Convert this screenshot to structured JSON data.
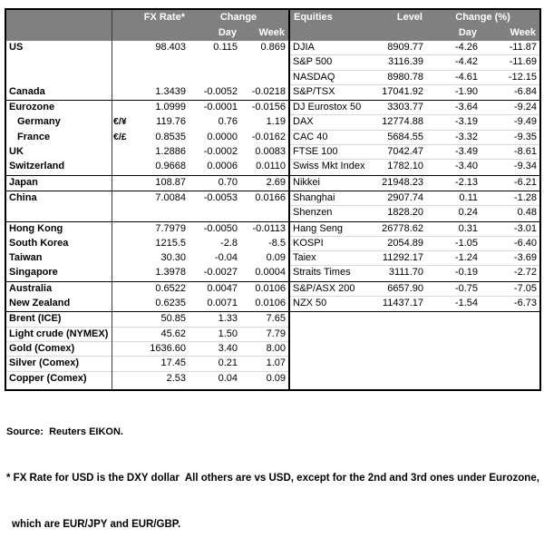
{
  "fx": {
    "header": {
      "rate": "FX Rate*",
      "change": "Change",
      "day": "Day",
      "week": "Week"
    },
    "rows": [
      {
        "name": "US",
        "pair": "",
        "rate": "98.403",
        "day": "0.115",
        "week": "0.869"
      },
      {
        "name": "",
        "pair": "",
        "rate": "",
        "day": "",
        "week": ""
      },
      {
        "name": "",
        "pair": "",
        "rate": "",
        "day": "",
        "week": ""
      },
      {
        "name": "Canada",
        "pair": "",
        "rate": "1.3439",
        "day": "-0.0052",
        "week": "-0.0218"
      },
      {
        "name": "Eurozone",
        "pair": "",
        "rate": "1.0999",
        "day": "-0.0001",
        "week": "-0.0156"
      },
      {
        "name": "Germany",
        "pair": "€/¥",
        "rate": "119.76",
        "day": "0.76",
        "week": "1.19"
      },
      {
        "name": "France",
        "pair": "€/£",
        "rate": "0.8535",
        "day": "0.0000",
        "week": "-0.0162"
      },
      {
        "name": "UK",
        "pair": "",
        "rate": "1.2886",
        "day": "-0.0002",
        "week": "0.0083"
      },
      {
        "name": "Switzerland",
        "pair": "",
        "rate": "0.9668",
        "day": "0.0006",
        "week": "0.0110"
      },
      {
        "name": "Japan",
        "pair": "",
        "rate": "108.87",
        "day": "0.70",
        "week": "2.69"
      },
      {
        "name": "China",
        "pair": "",
        "rate": "7.0084",
        "day": "-0.0053",
        "week": "0.0166"
      },
      {
        "name": "",
        "pair": "",
        "rate": "",
        "day": "",
        "week": ""
      },
      {
        "name": "Hong Kong",
        "pair": "",
        "rate": "7.7979",
        "day": "-0.0050",
        "week": "-0.0113"
      },
      {
        "name": "South Korea",
        "pair": "",
        "rate": "1215.5",
        "day": "-2.8",
        "week": "-8.5"
      },
      {
        "name": "Taiwan",
        "pair": "",
        "rate": "30.30",
        "day": "-0.04",
        "week": "0.09"
      },
      {
        "name": "Singapore",
        "pair": "",
        "rate": "1.3978",
        "day": "-0.0027",
        "week": "0.0004"
      },
      {
        "name": "Australia",
        "pair": "",
        "rate": "0.6522",
        "day": "0.0047",
        "week": "0.0106"
      },
      {
        "name": "New Zealand",
        "pair": "",
        "rate": "0.6235",
        "day": "0.0071",
        "week": "0.0106"
      },
      {
        "name": "Brent (ICE)",
        "pair": "",
        "rate": "50.85",
        "day": "1.33",
        "week": "7.65"
      },
      {
        "name": "Light crude (NYMEX)",
        "pair": "",
        "rate": "45.62",
        "day": "1.50",
        "week": "7.79"
      },
      {
        "name": "Gold (Comex)",
        "pair": "",
        "rate": "1636.60",
        "day": "3.40",
        "week": "8.00"
      },
      {
        "name": "Silver (Comex)",
        "pair": "",
        "rate": "17.45",
        "day": "0.21",
        "week": "1.07"
      },
      {
        "name": "Copper (Comex)",
        "pair": "",
        "rate": "2.53",
        "day": "0.04",
        "week": "0.09"
      }
    ]
  },
  "eq": {
    "header": {
      "name": "Equities",
      "level": "Level",
      "change": "Change (%)",
      "day": "Day",
      "week": "Week"
    },
    "rows": [
      {
        "name": "DJIA",
        "level": "8909.77",
        "day": "-4.26",
        "week": "-11.87"
      },
      {
        "name": "S&P 500",
        "level": "3116.39",
        "day": "-4.42",
        "week": "-11.69"
      },
      {
        "name": "NASDAQ",
        "level": "8980.78",
        "day": "-4.61",
        "week": "-12.15"
      },
      {
        "name": "S&P/TSX",
        "level": "17041.92",
        "day": "-1.90",
        "week": "-6.84"
      },
      {
        "name": "DJ Eurostox 50",
        "level": "3303.77",
        "day": "-3.64",
        "week": "-9.24"
      },
      {
        "name": "DAX",
        "level": "12774.88",
        "day": "-3.19",
        "week": "-9.49"
      },
      {
        "name": "CAC 40",
        "level": "5684.55",
        "day": "-3.32",
        "week": "-9.35"
      },
      {
        "name": "FTSE 100",
        "level": "7042.47",
        "day": "-3.49",
        "week": "-8.61"
      },
      {
        "name": "Swiss Mkt Index",
        "level": "1782.10",
        "day": "-3.40",
        "week": "-9.34"
      },
      {
        "name": "Nikkei",
        "level": "21948.23",
        "day": "-2.13",
        "week": "-6.21"
      },
      {
        "name": "Shanghai",
        "level": "2907.74",
        "day": "0.11",
        "week": "-1.28"
      },
      {
        "name": "Shenzen",
        "level": "1828.20",
        "day": "0.24",
        "week": "0.48"
      },
      {
        "name": "Hang Seng",
        "level": "26778.62",
        "day": "0.31",
        "week": "-3.01"
      },
      {
        "name": "KOSPI",
        "level": "2054.89",
        "day": "-1.05",
        "week": "-6.40"
      },
      {
        "name": "Taiex",
        "level": "11292.17",
        "day": "-1.24",
        "week": "-3.69"
      },
      {
        "name": "Straits Times",
        "level": "3111.70",
        "day": "-0.19",
        "week": "-2.72"
      },
      {
        "name": "S&P/ASX 200",
        "level": "6657.90",
        "day": "-0.75",
        "week": "-7.05"
      },
      {
        "name": "NZX 50",
        "level": "11437.17",
        "day": "-1.54",
        "week": "-6.73"
      }
    ]
  },
  "footer": {
    "source": "Source:  Reuters EIKON.",
    "footnote_line1": "* FX Rate for USD is the DXY dollar  All others are vs USD, except for the 2nd and 3rd ones under Eurozone,",
    "footnote_line2": "which are EUR/JPY and EUR/GBP."
  },
  "colors": {
    "header_bg": "#808080",
    "header_text": "#ffffff",
    "grid_line": "#d9d9d9",
    "table_border": "#000000"
  }
}
